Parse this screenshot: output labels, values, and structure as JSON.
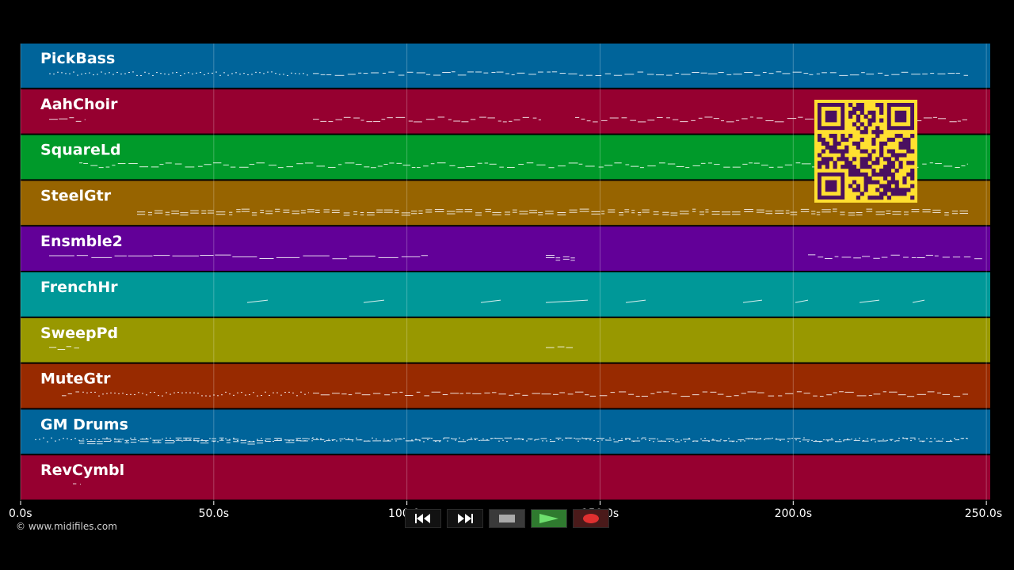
{
  "tracks": [
    {
      "name": "PickBass",
      "color": "#00649a"
    },
    {
      "name": "AahChoir",
      "color": "#960030"
    },
    {
      "name": "SquareLd",
      "color": "#009a2a"
    },
    {
      "name": "SteelGtr",
      "color": "#976400"
    },
    {
      "name": "Ensmble2",
      "color": "#620098"
    },
    {
      "name": "FrenchHr",
      "color": "#009898"
    },
    {
      "name": "SweepPd",
      "color": "#989800"
    },
    {
      "name": "MuteGtr",
      "color": "#982a00"
    },
    {
      "name": "GM Drums",
      "color": "#00649a"
    },
    {
      "name": "RevCymbl",
      "color": "#960030"
    }
  ],
  "time_axis": {
    "ticks": [
      "0.0s",
      "50.0s",
      "100.0s",
      "150.0s",
      "200.0s",
      "250.0s"
    ],
    "tick_values": [
      0,
      50,
      100,
      150,
      200,
      250
    ],
    "range": [
      0,
      251
    ]
  },
  "copyright": "© www.midifiles.com",
  "transport": {
    "rewind_icon": "rewind-icon",
    "fast_forward_icon": "fast-forward-icon",
    "stop_icon": "stop-icon",
    "play_icon": "play-icon",
    "record_icon": "record-icon",
    "play_color": "#6ee06e",
    "record_color": "#e03030"
  },
  "qr": {
    "fg": "#4a1060",
    "bg": "#ffe030"
  }
}
